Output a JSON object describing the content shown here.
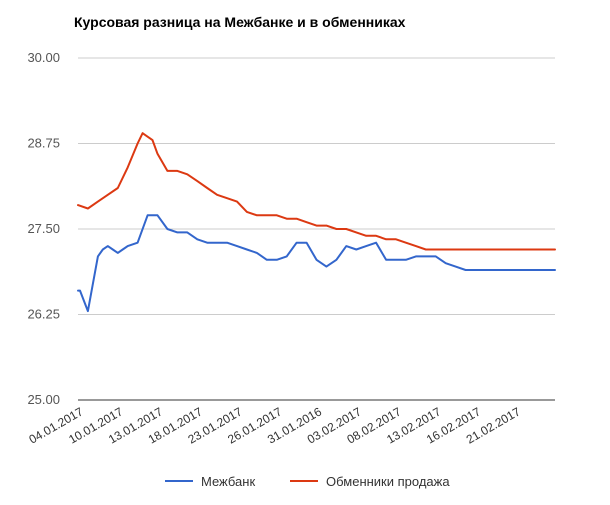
{
  "chart_data": {
    "type": "line",
    "title": "Курсовая разница на Межбанке и в обменниках",
    "xlabel": "",
    "ylabel": "",
    "ylim": [
      25.0,
      30.0
    ],
    "yticks": [
      "30.00",
      "28.75",
      "27.50",
      "26.25",
      "25.00"
    ],
    "ytick_values": [
      30.0,
      28.75,
      27.5,
      26.25,
      25.0
    ],
    "xticks": [
      "04.01.2017",
      "10.01.2017",
      "13.01.2017",
      "18.01.2017",
      "23.01.2017",
      "26.01.2017",
      "31.01.2016",
      "03.02.2017",
      "08.02.2017",
      "13.02.2017",
      "16.02.2017",
      "21.02.2017"
    ],
    "xtick_positions": [
      0,
      4,
      8,
      12,
      16,
      20,
      24,
      28,
      32,
      36,
      40,
      44
    ],
    "x_range": [
      0,
      48
    ],
    "grid": "horizontal",
    "legend_position": "bottom",
    "series": [
      {
        "name": "Межбанк",
        "color": "#3366cc",
        "x": [
          0,
          0.2,
          1,
          1.5,
          2,
          2.5,
          3,
          3.5,
          4,
          4.5,
          5,
          6,
          7,
          7.5,
          8,
          9,
          10,
          11,
          12,
          13,
          14,
          15,
          16,
          17,
          18,
          19,
          20,
          21,
          22,
          23,
          24,
          25,
          26,
          27,
          28,
          29,
          30,
          31,
          32,
          33,
          34,
          35,
          36,
          37,
          38,
          39,
          40,
          41,
          42,
          43,
          44,
          45,
          46,
          47,
          48
        ],
        "values": [
          26.6,
          26.6,
          26.3,
          26.7,
          27.1,
          27.2,
          27.25,
          27.2,
          27.15,
          27.2,
          27.25,
          27.3,
          27.7,
          27.7,
          27.7,
          27.5,
          27.45,
          27.45,
          27.35,
          27.3,
          27.3,
          27.3,
          27.25,
          27.2,
          27.15,
          27.05,
          27.05,
          27.1,
          27.3,
          27.3,
          27.05,
          26.95,
          27.05,
          27.25,
          27.2,
          27.25,
          27.3,
          27.05,
          27.05,
          27.05,
          27.1,
          27.1,
          27.1,
          27.0,
          26.95,
          26.9,
          26.9,
          26.9,
          26.9,
          26.9,
          26.9,
          26.9,
          26.9,
          26.9,
          26.9
        ]
      },
      {
        "name": "Обменники продажа",
        "color": "#dc3912",
        "x": [
          0,
          1,
          2,
          3,
          4,
          5,
          6,
          6.5,
          7,
          7.5,
          8,
          9,
          10,
          11,
          12,
          13,
          14,
          15,
          16,
          17,
          18,
          19,
          20,
          21,
          22,
          23,
          24,
          25,
          26,
          27,
          28,
          29,
          30,
          31,
          32,
          33,
          34,
          35,
          36,
          37,
          38,
          39,
          40,
          41,
          42,
          43,
          44,
          45,
          46,
          47,
          48
        ],
        "values": [
          27.85,
          27.8,
          27.9,
          28.0,
          28.1,
          28.4,
          28.75,
          28.9,
          28.85,
          28.8,
          28.6,
          28.35,
          28.35,
          28.3,
          28.2,
          28.1,
          28.0,
          27.95,
          27.9,
          27.75,
          27.7,
          27.7,
          27.7,
          27.65,
          27.65,
          27.6,
          27.55,
          27.55,
          27.5,
          27.5,
          27.45,
          27.4,
          27.4,
          27.35,
          27.35,
          27.3,
          27.25,
          27.2,
          27.2,
          27.2,
          27.2,
          27.2,
          27.2,
          27.2,
          27.2,
          27.2,
          27.2,
          27.2,
          27.2,
          27.2,
          27.2
        ]
      }
    ]
  }
}
